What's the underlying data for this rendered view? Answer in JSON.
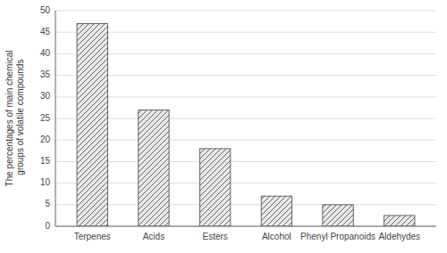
{
  "chart_data": {
    "type": "bar",
    "ylabel": "The percentages of main chemical groups of volatile compounds",
    "categories": [
      "Terpenes",
      "Acids",
      "Esters",
      "Alcohol",
      "Phenyl Propanoids",
      "Aldehydes"
    ],
    "values": [
      47,
      27,
      18,
      7,
      5,
      2.5
    ],
    "color": "#e8e8e8",
    "ylim": [
      0,
      50
    ],
    "yticks": [
      0,
      5,
      10,
      15,
      20,
      25,
      30,
      35,
      40,
      45,
      50
    ],
    "grid": true
  }
}
